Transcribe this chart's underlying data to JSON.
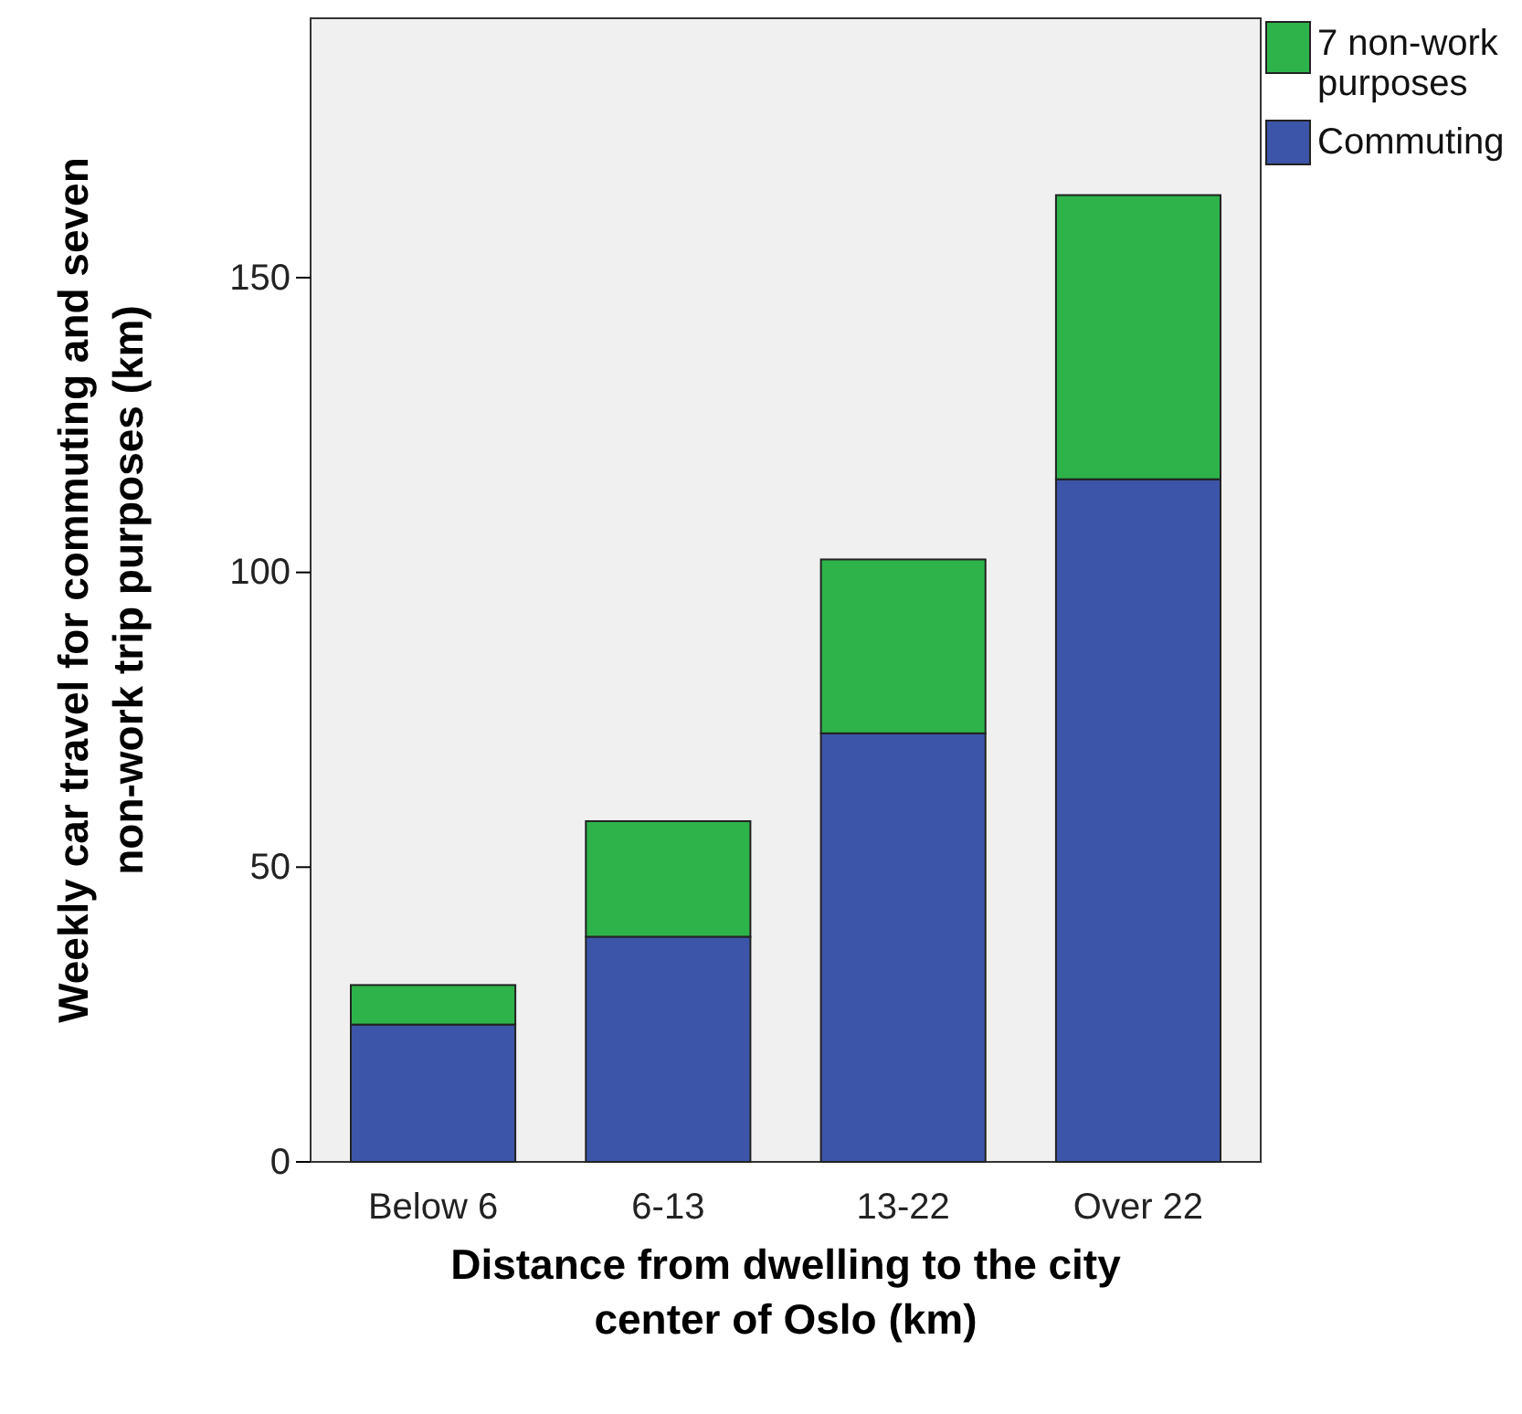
{
  "chart_data": {
    "type": "bar",
    "stacked": true,
    "xlabel": "Distance from dwelling to the city center of Oslo (km)",
    "ylabel": "Weekly car travel for commuting and seven non-work trip purposes (km)",
    "categories": [
      "Below 6",
      "6-13",
      "13-22",
      "Over 22"
    ],
    "series": [
      {
        "name": "Commuting",
        "color": "#3c55a8",
        "values": [
          23.3,
          38.2,
          72.7,
          115.8
        ]
      },
      {
        "name": "7 non-work purposes",
        "color": "#2db34a",
        "values": [
          6.7,
          19.6,
          29.5,
          48.2
        ]
      }
    ],
    "ylim": [
      0,
      194
    ],
    "yticks": [
      0,
      50,
      100,
      150
    ],
    "legend": "top right"
  }
}
